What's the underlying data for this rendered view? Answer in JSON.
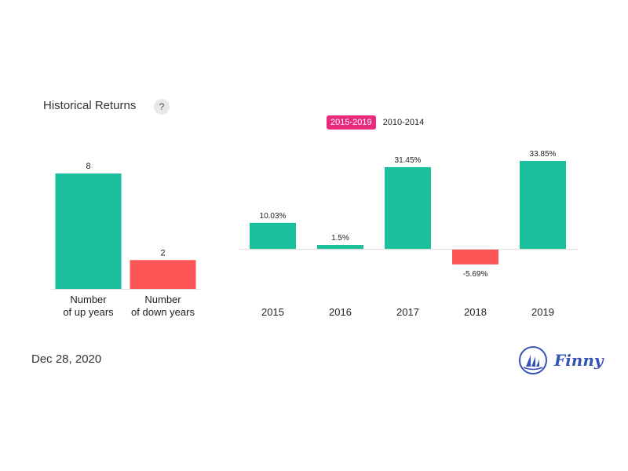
{
  "header": {
    "title": "Historical Returns",
    "help_label": "?"
  },
  "range_tabs": [
    {
      "label": "2015-2019",
      "active": true
    },
    {
      "label": "2010-2014",
      "active": false
    }
  ],
  "footer": {
    "date": "Dec 28, 2020",
    "logo_text": "Finny",
    "logo_icon": "sailboat-icon"
  },
  "colors": {
    "positive": "#1cbf9b",
    "negative": "#fd5656",
    "active_tab": "#ea2a7d",
    "logo": "#3454b4",
    "baseline": "#dddddd"
  },
  "chart_data": [
    {
      "type": "bar",
      "categories": [
        "Number\nof up years",
        "Number\nof down years"
      ],
      "values": [
        8,
        2
      ],
      "data_labels": [
        "8",
        "2"
      ],
      "colors": [
        "#1cbf9b",
        "#fd5656"
      ],
      "ylim": [
        0,
        8
      ]
    },
    {
      "type": "bar",
      "categories": [
        "2015",
        "2016",
        "2017",
        "2018",
        "2019"
      ],
      "values": [
        10.03,
        1.5,
        31.45,
        -5.69,
        33.85
      ],
      "data_labels": [
        "10.03%",
        "1.5%",
        "31.45%",
        "-5.69%",
        "33.85%"
      ],
      "ylim": [
        -5.69,
        33.85
      ]
    }
  ]
}
